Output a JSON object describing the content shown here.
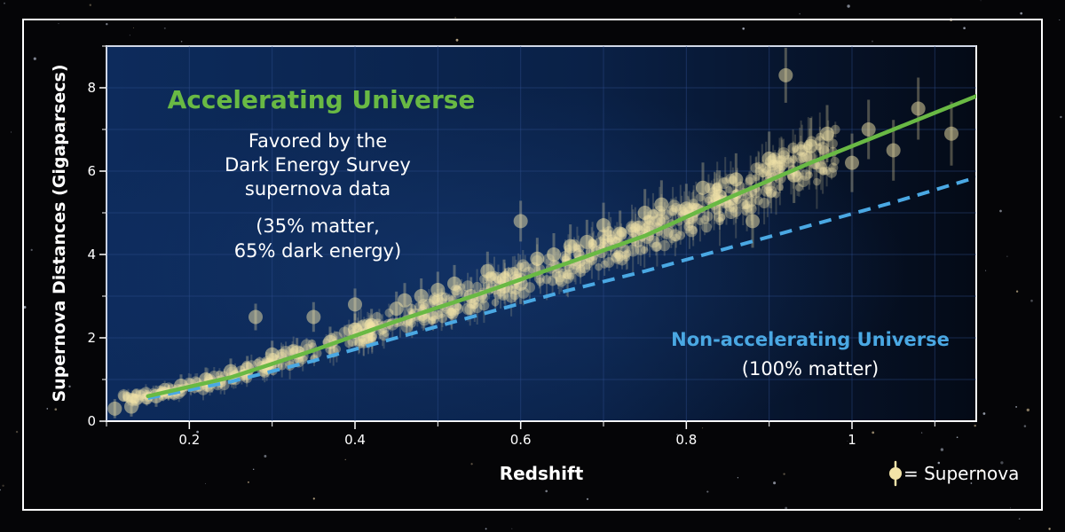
{
  "colors": {
    "background": "#050507",
    "frame": "#ffffff",
    "plot_bg_dark": "#060f1f",
    "plot_bg_blue": "#0c2a5a",
    "grid": "#2f4f8f",
    "accelerating": "#69b944",
    "non_accelerating": "#4aa8e3",
    "supernova": "#f2e3a8",
    "text": "#ffffff"
  },
  "icons": {
    "legend_marker": "supernova-marker-icon"
  },
  "chart_data": {
    "type": "scatter",
    "xlabel": "Redshift",
    "ylabel": "Supernova Distances (Gigaparsecs)",
    "xlim": [
      0.1,
      1.15
    ],
    "ylim": [
      0,
      9
    ],
    "x_ticks": [
      0.2,
      0.4,
      0.6,
      0.8,
      1.0
    ],
    "x_tick_labels": [
      "0.2",
      "0.4",
      "0.6",
      "0.8",
      "1"
    ],
    "y_ticks": [
      0,
      2,
      4,
      6,
      8
    ],
    "y_tick_labels": [
      "0",
      "2",
      "4",
      "6",
      "8"
    ],
    "grid": true,
    "series": [
      {
        "name": "Accelerating Universe",
        "kind": "line",
        "style": "solid",
        "x": [
          0.15,
          0.25,
          0.35,
          0.45,
          0.55,
          0.65,
          0.75,
          0.85,
          0.95,
          1.05,
          1.15
        ],
        "y": [
          0.6,
          1.05,
          1.7,
          2.4,
          3.05,
          3.75,
          4.45,
          5.35,
          6.2,
          7.0,
          7.8
        ]
      },
      {
        "name": "Non-accelerating Universe",
        "kind": "line",
        "style": "dashed",
        "x": [
          0.15,
          0.25,
          0.35,
          0.45,
          0.55,
          0.65,
          0.75,
          0.85,
          0.95,
          1.05,
          1.15
        ],
        "y": [
          0.55,
          0.95,
          1.45,
          2.0,
          2.55,
          3.1,
          3.6,
          4.15,
          4.7,
          5.25,
          5.85
        ]
      },
      {
        "name": "Supernova",
        "kind": "scatter",
        "x": [
          0.11,
          0.13,
          0.16,
          0.19,
          0.22,
          0.25,
          0.27,
          0.28,
          0.3,
          0.33,
          0.35,
          0.37,
          0.4,
          0.4,
          0.42,
          0.45,
          0.46,
          0.48,
          0.5,
          0.52,
          0.54,
          0.56,
          0.58,
          0.6,
          0.6,
          0.62,
          0.64,
          0.66,
          0.68,
          0.7,
          0.72,
          0.75,
          0.77,
          0.8,
          0.82,
          0.84,
          0.86,
          0.88,
          0.9,
          0.92,
          0.93,
          0.95,
          0.97,
          1.0,
          1.02,
          1.05,
          1.08,
          1.12
        ],
        "y": [
          0.3,
          0.35,
          0.6,
          0.85,
          1.0,
          1.2,
          1.25,
          2.5,
          1.6,
          1.65,
          2.5,
          1.9,
          2.8,
          2.2,
          2.3,
          2.7,
          2.9,
          3.0,
          3.15,
          3.3,
          3.0,
          3.6,
          3.4,
          4.8,
          3.3,
          3.9,
          4.0,
          4.2,
          4.3,
          4.7,
          4.5,
          5.0,
          5.2,
          5.1,
          5.6,
          5.4,
          5.8,
          4.8,
          6.3,
          8.3,
          5.9,
          6.6,
          6.9,
          6.2,
          7.0,
          6.5,
          7.5,
          6.9
        ]
      }
    ],
    "annotations": {
      "accelerating_title": "Accelerating Universe",
      "accelerating_desc": [
        "Favored by the",
        "Dark Energy Survey",
        "supernova data"
      ],
      "accelerating_mix": [
        "(35% matter,",
        "65% dark energy)"
      ],
      "non_accelerating_title": "Non-accelerating Universe",
      "non_accelerating_mix": "(100% matter)"
    },
    "legend": {
      "label": "= Supernova",
      "placement": "bottom-right"
    }
  }
}
